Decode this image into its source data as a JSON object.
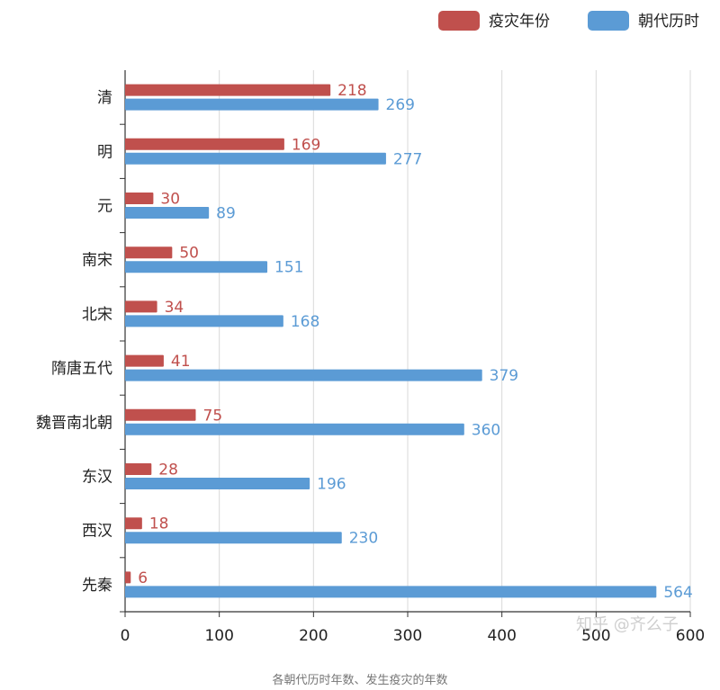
{
  "chart_data": {
    "type": "bar",
    "orientation": "horizontal",
    "categories": [
      "清",
      "明",
      "元",
      "南宋",
      "北宋",
      "隋唐五代",
      "魏晋南北朝",
      "东汉",
      "西汉",
      "先秦"
    ],
    "series": [
      {
        "name": "疫灾年份",
        "color": "#c0504d",
        "values": [
          218,
          169,
          30,
          50,
          34,
          41,
          75,
          28,
          18,
          6
        ]
      },
      {
        "name": "朝代历时",
        "color": "#5b9bd5",
        "values": [
          269,
          277,
          89,
          151,
          168,
          379,
          360,
          196,
          230,
          564
        ]
      }
    ],
    "xlim": [
      0,
      600
    ],
    "xticks": [
      0,
      100,
      200,
      300,
      400,
      500,
      600
    ],
    "grid": true,
    "legend": "top-right",
    "caption": "各朝代历时年数、发生疫灾的年数"
  },
  "watermark": "知乎 @齐么子"
}
